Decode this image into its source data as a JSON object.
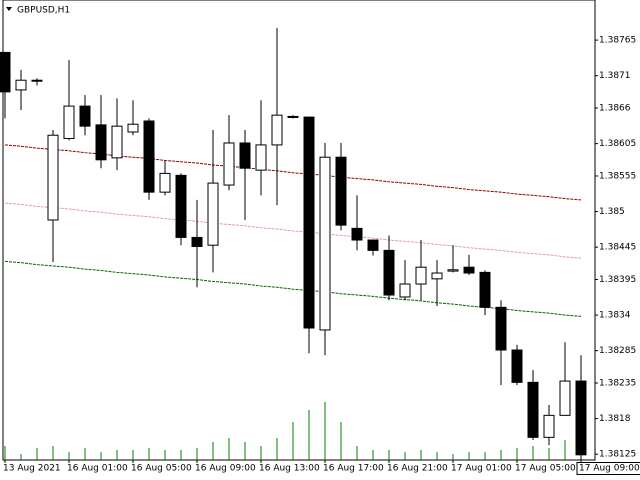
{
  "chart_data": {
    "type": "candlestick",
    "title": "GBPUSD,H1",
    "categories": [
      "13 Aug 2021",
      null,
      null,
      null,
      "16 Aug 01:00",
      null,
      null,
      null,
      "16 Aug 05:00",
      null,
      null,
      null,
      "16 Aug 09:00",
      null,
      null,
      null,
      "16 Aug 13:00",
      null,
      null,
      null,
      "16 Aug 17:00",
      null,
      null,
      null,
      "16 Aug 21:00",
      null,
      null,
      null,
      "17 Aug 01:00",
      null,
      null,
      null,
      "17 Aug 05:00",
      null,
      null,
      null,
      "17 Aug 09:00"
    ],
    "open": [
      1.38746,
      1.38688,
      1.38703,
      1.38487,
      1.38613,
      1.38663,
      1.38634,
      1.38583,
      1.38623,
      1.3864,
      1.3853,
      1.38556,
      1.3846,
      1.38448,
      1.38541,
      1.38606,
      1.38564,
      1.38603,
      1.38647,
      1.38646,
      1.38317,
      1.38584,
      1.38474,
      1.38456,
      1.3844,
      1.38368,
      1.38388,
      1.38396,
      1.38408,
      1.38414,
      1.38406,
      1.38352,
      1.38286,
      1.38236,
      1.38151,
      1.38185,
      1.38238
    ],
    "high": [
      1.38746,
      1.38719,
      1.38706,
      1.38626,
      1.38734,
      1.3868,
      1.3868,
      1.38675,
      1.38672,
      1.38644,
      1.38579,
      1.38559,
      1.38518,
      1.38626,
      1.38649,
      1.38626,
      1.38672,
      1.38784,
      1.38649,
      1.38646,
      1.38606,
      1.38606,
      1.38525,
      1.38456,
      1.38463,
      1.38425,
      1.38456,
      1.38425,
      1.38448,
      1.38433,
      1.38409,
      1.38363,
      1.38294,
      1.38255,
      1.38201,
      1.38298,
      1.38278
    ],
    "low": [
      1.38644,
      1.38657,
      1.38695,
      1.38422,
      1.3861,
      1.38618,
      1.38567,
      1.38564,
      1.38618,
      1.38518,
      1.38525,
      1.38448,
      1.38383,
      1.38406,
      1.38533,
      1.38487,
      1.38525,
      1.3851,
      1.38644,
      1.38281,
      1.38278,
      1.38471,
      1.3844,
      1.38432,
      1.38363,
      1.38363,
      1.38363,
      1.38354,
      1.38406,
      1.38402,
      1.3834,
      1.38232,
      1.38232,
      1.38147,
      1.38139,
      1.38185,
      1.38116
    ],
    "close": [
      1.38685,
      1.38703,
      1.38703,
      1.38618,
      1.38663,
      1.38632,
      1.3858,
      1.38632,
      1.38635,
      1.3853,
      1.38559,
      1.3846,
      1.38446,
      1.38544,
      1.38606,
      1.38567,
      1.38603,
      1.38649,
      1.38647,
      1.3832,
      1.38584,
      1.38479,
      1.38456,
      1.3844,
      1.38371,
      1.38388,
      1.38414,
      1.38405,
      1.3841,
      1.38405,
      1.38352,
      1.38286,
      1.38236,
      1.38151,
      1.38185,
      1.38238,
      1.38124
    ],
    "series": [
      {
        "color": "#8b0000",
        "values": [
          1.38603,
          1.38601,
          1.38598,
          1.38596,
          1.38594,
          1.38591,
          1.38589,
          1.38586,
          1.38584,
          1.38582,
          1.38579,
          1.38577,
          1.38575,
          1.38572,
          1.3857,
          1.38568,
          1.38565,
          1.38563,
          1.3856,
          1.38558,
          1.38556,
          1.38553,
          1.38551,
          1.38549,
          1.38546,
          1.38544,
          1.38542,
          1.38539,
          1.38537,
          1.38534,
          1.38532,
          1.3853,
          1.38527,
          1.38525,
          1.38523,
          1.3852,
          1.38518
        ]
      },
      {
        "color": "#dda0a8",
        "values": [
          1.38513,
          1.38511,
          1.38508,
          1.38506,
          1.38504,
          1.38501,
          1.38499,
          1.38496,
          1.38494,
          1.38492,
          1.38489,
          1.38487,
          1.38485,
          1.38482,
          1.3848,
          1.38478,
          1.38475,
          1.38473,
          1.3847,
          1.38468,
          1.38466,
          1.38463,
          1.38461,
          1.38459,
          1.38456,
          1.38454,
          1.38452,
          1.38449,
          1.38447,
          1.38444,
          1.38442,
          1.3844,
          1.38437,
          1.38435,
          1.38433,
          1.3843,
          1.38428
        ]
      },
      {
        "color": "#006400",
        "values": [
          1.38423,
          1.38421,
          1.38418,
          1.38416,
          1.38414,
          1.38411,
          1.38409,
          1.38406,
          1.38404,
          1.38402,
          1.38399,
          1.38397,
          1.38395,
          1.38392,
          1.3839,
          1.38388,
          1.38385,
          1.38383,
          1.3838,
          1.38378,
          1.38376,
          1.38373,
          1.38371,
          1.38369,
          1.38366,
          1.38364,
          1.38362,
          1.38359,
          1.38357,
          1.38354,
          1.38352,
          1.3835,
          1.38347,
          1.38345,
          1.38343,
          1.3834,
          1.38338
        ]
      }
    ],
    "volumes": [
      14,
      6,
      12,
      14,
      8,
      12,
      8,
      10,
      10,
      12,
      10,
      10,
      12,
      18,
      22,
      18,
      14,
      22,
      38,
      50,
      58,
      38,
      14,
      10,
      10,
      8,
      10,
      8,
      6,
      8,
      8,
      10,
      12,
      14,
      12,
      20,
      14
    ],
    "volume_color": "#008000",
    "volume_lim": [
      0,
      100
    ],
    "ylim": [
      1.38116,
      1.38827
    ],
    "yticks": [
      1.38765,
      1.3871,
      1.3866,
      1.38605,
      1.38555,
      1.385,
      1.38445,
      1.38395,
      1.3834,
      1.38285,
      1.38235,
      1.3818,
      1.38125
    ]
  }
}
